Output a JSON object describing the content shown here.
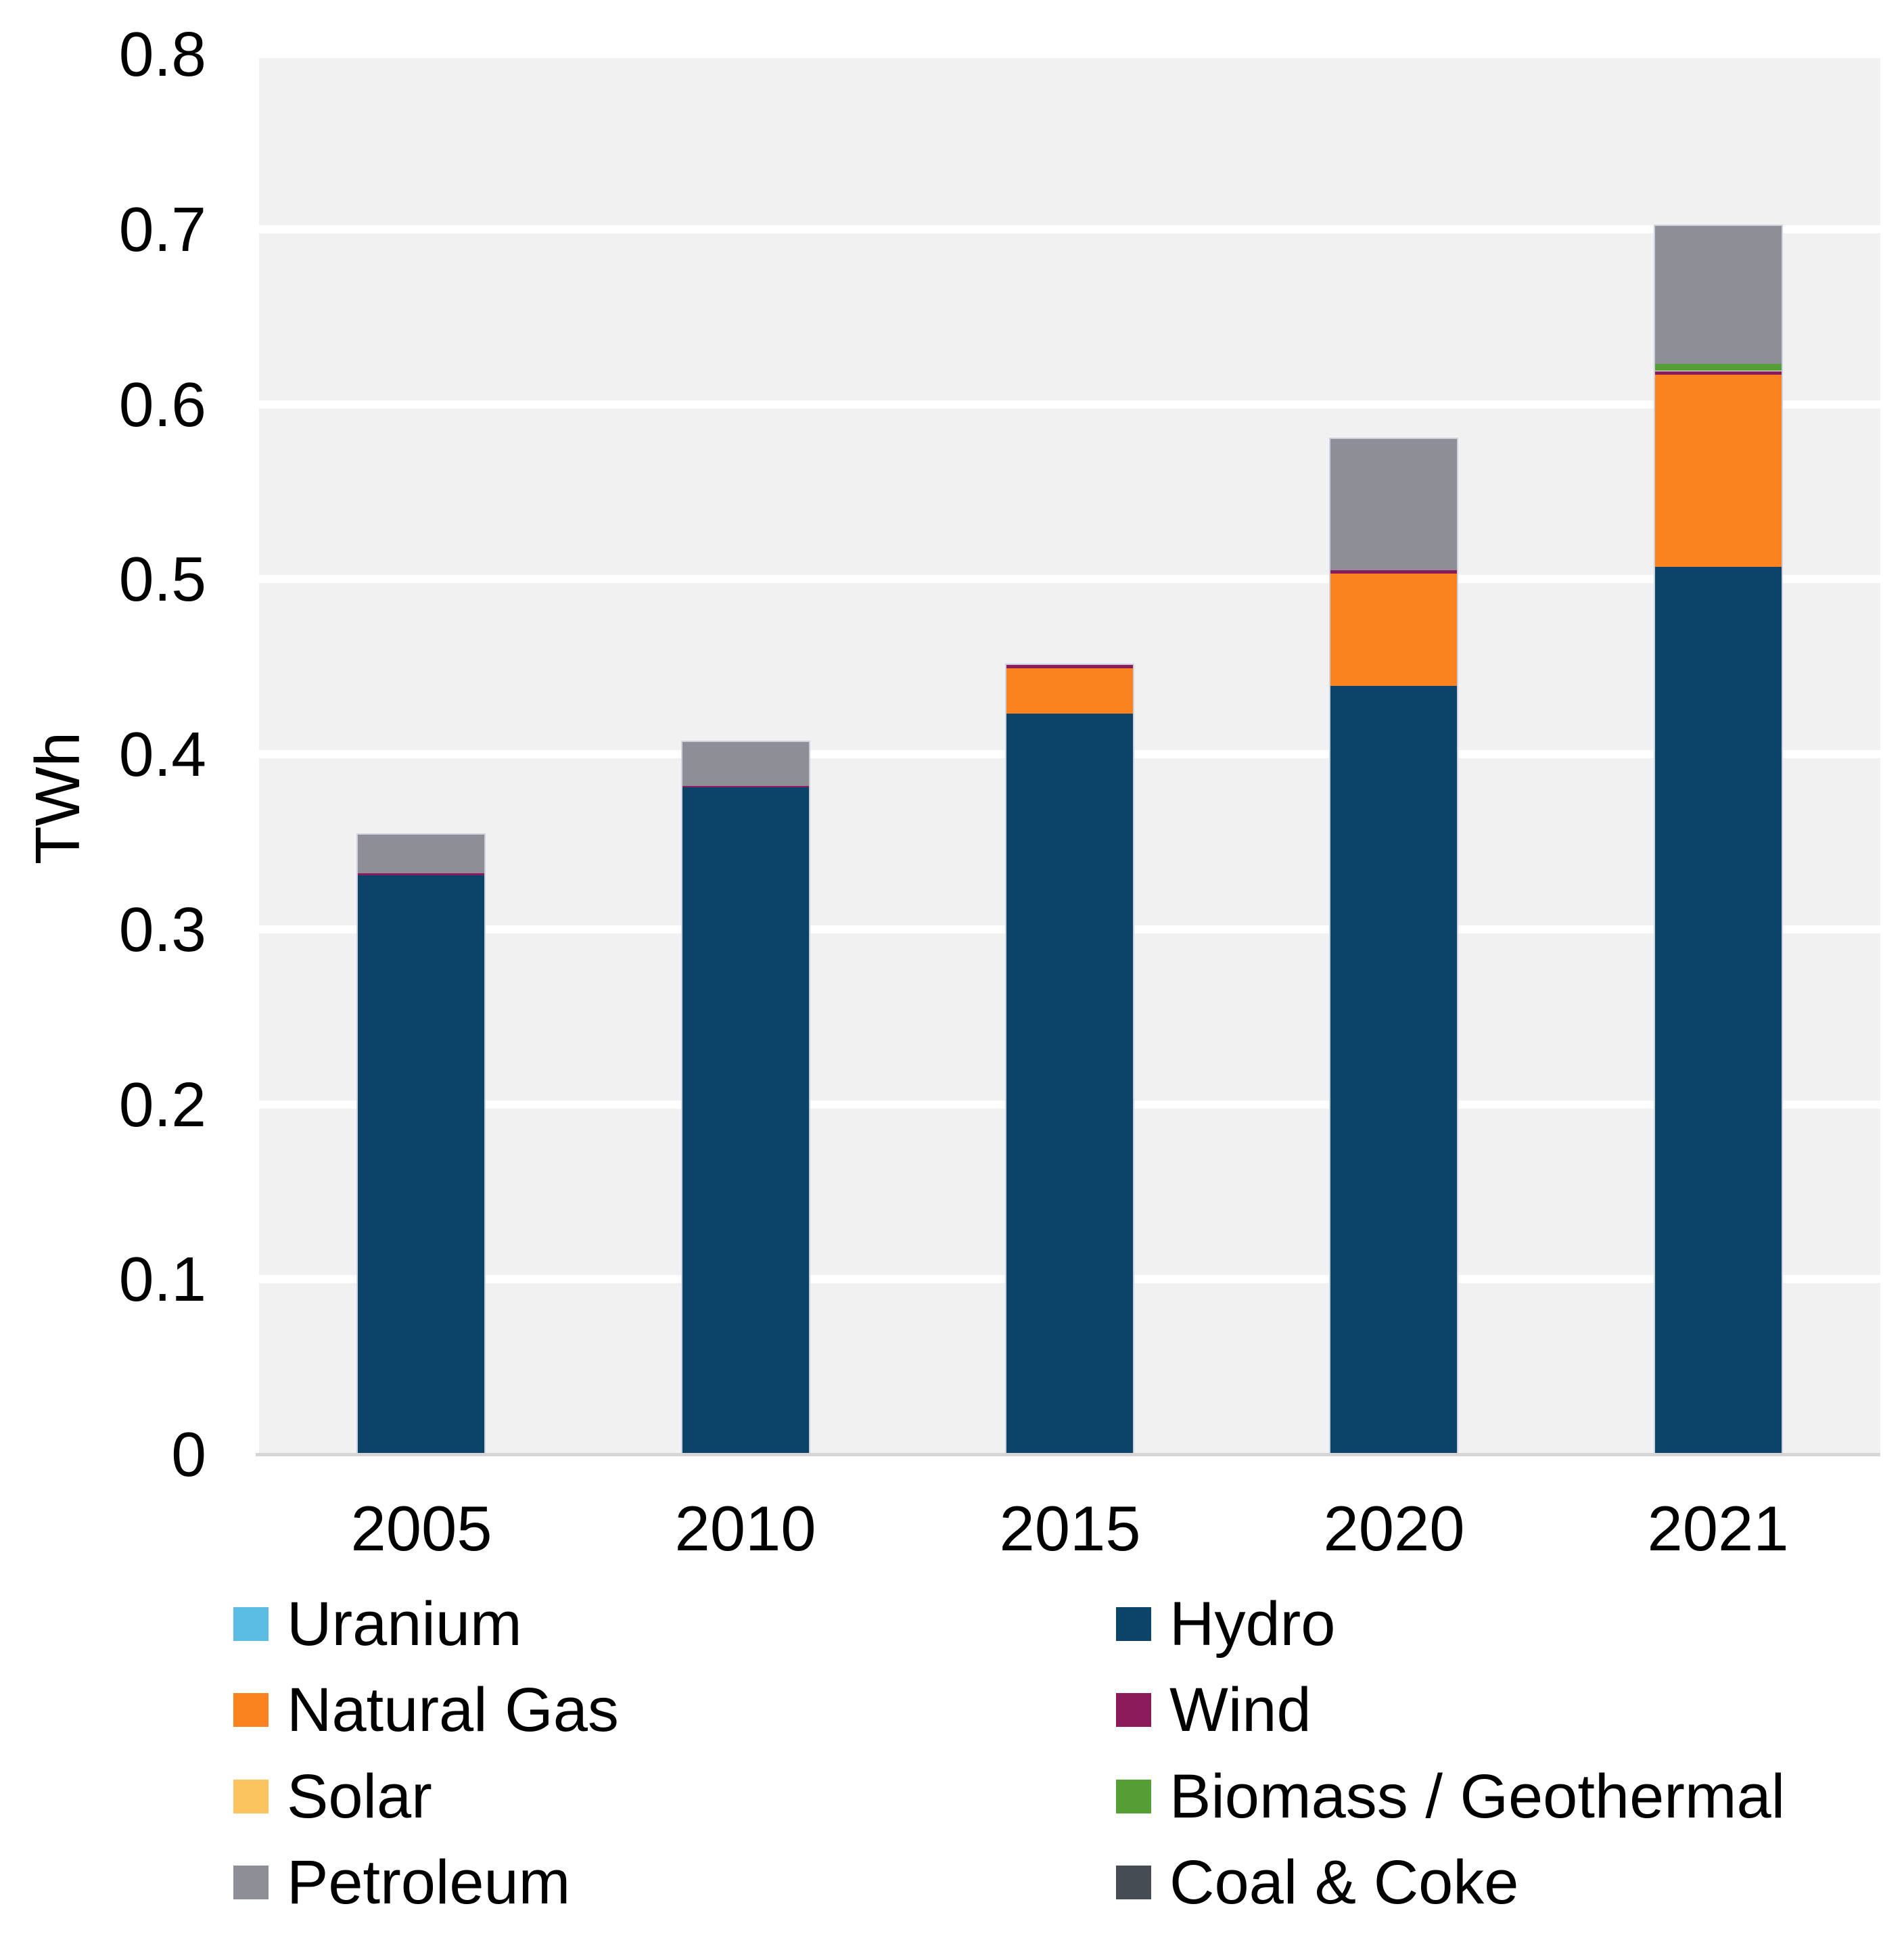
{
  "chart_data": {
    "type": "bar",
    "stacked": true,
    "title": "",
    "xlabel": "",
    "ylabel": "TWh",
    "ylim": [
      0,
      0.8
    ],
    "grid": true,
    "categories": [
      "2005",
      "2010",
      "2015",
      "2020",
      "2021"
    ],
    "y_ticks": [
      {
        "value": 0.0,
        "label": "0"
      },
      {
        "value": 0.1,
        "label": "0.1"
      },
      {
        "value": 0.2,
        "label": "0.2"
      },
      {
        "value": 0.3,
        "label": "0.3"
      },
      {
        "value": 0.4,
        "label": "0.4"
      },
      {
        "value": 0.5,
        "label": "0.5"
      },
      {
        "value": 0.6,
        "label": "0.6"
      },
      {
        "value": 0.7,
        "label": "0.7"
      },
      {
        "value": 0.8,
        "label": "0.8"
      }
    ],
    "series": [
      {
        "name": "Uranium",
        "color": "#5bbde4",
        "values": [
          0,
          0,
          0,
          0,
          0
        ]
      },
      {
        "name": "Hydro",
        "color": "#0b4369",
        "values": [
          0.331,
          0.381,
          0.423,
          0.439,
          0.507
        ]
      },
      {
        "name": "Natural Gas",
        "color": "#fa821f",
        "values": [
          0,
          0,
          0.026,
          0.064,
          0.11
        ]
      },
      {
        "name": "Wind",
        "color": "#8c1b5c",
        "values": [
          0.001,
          0.001,
          0.002,
          0.002,
          0.002
        ]
      },
      {
        "name": "Solar",
        "color": "#fcc45f",
        "values": [
          0,
          0,
          0,
          0,
          0
        ]
      },
      {
        "name": "Biomass / Geothermal",
        "color": "#559e35",
        "values": [
          0,
          0,
          0,
          0,
          0.004
        ]
      },
      {
        "name": "Petroleum",
        "color": "#8e8e97",
        "values": [
          0.022,
          0.025,
          0,
          0.075,
          0.079
        ]
      },
      {
        "name": "Coal & Coke",
        "color": "#464c53",
        "values": [
          0,
          0,
          0,
          0,
          0
        ]
      }
    ],
    "totals": [
      0.354,
      0.407,
      0.451,
      0.58,
      0.702
    ],
    "legend_rows": [
      [
        "Uranium",
        "Hydro"
      ],
      [
        "Natural Gas",
        "Wind"
      ],
      [
        "Solar",
        "Biomass / Geothermal"
      ],
      [
        "Petroleum",
        "Coal & Coke"
      ]
    ],
    "legend_position": "bottom"
  },
  "style": {
    "plot_background": "#f1f1f2",
    "gridline_color": "#ffffff",
    "axis_line_color": "#d6d6d8",
    "bar_outline_color": "#ccd3de",
    "text_color": "#000000"
  }
}
